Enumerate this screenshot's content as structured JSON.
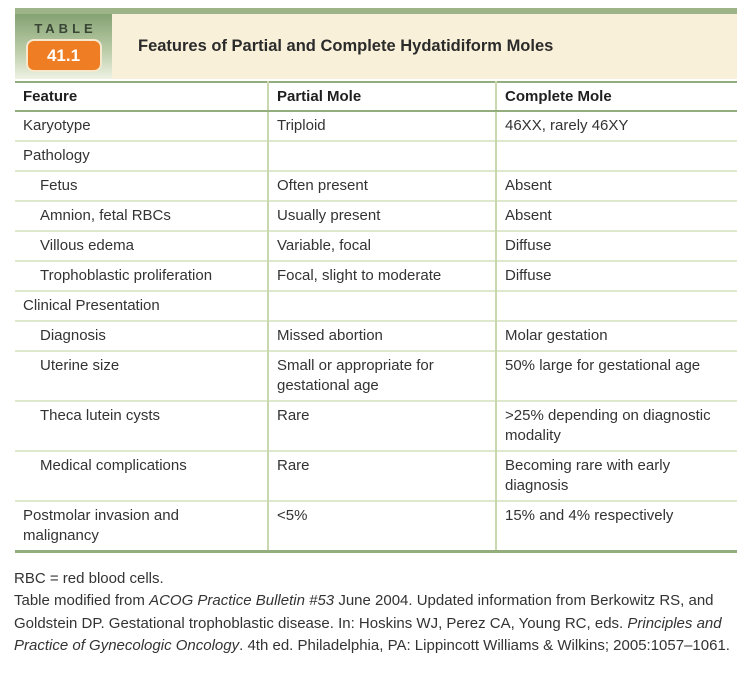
{
  "header": {
    "table_word": "TABLE",
    "table_number": "41.1",
    "title": "Features of Partial and Complete Hydatidiform Moles"
  },
  "table": {
    "columns": [
      "Feature",
      "Partial Mole",
      "Complete Mole"
    ],
    "rows": [
      {
        "feature": "Karyotype",
        "partial": "Triploid",
        "complete": "46XX, rarely 46XY",
        "type": "data",
        "indent": false
      },
      {
        "feature": "Pathology",
        "partial": "",
        "complete": "",
        "type": "section",
        "indent": false
      },
      {
        "feature": "Fetus",
        "partial": "Often present",
        "complete": "Absent",
        "type": "data",
        "indent": true
      },
      {
        "feature": "Amnion, fetal RBCs",
        "partial": "Usually present",
        "complete": "Absent",
        "type": "data",
        "indent": true
      },
      {
        "feature": "Villous edema",
        "partial": "Variable, focal",
        "complete": "Diffuse",
        "type": "data",
        "indent": true
      },
      {
        "feature": "Trophoblastic proliferation",
        "partial": "Focal, slight to moderate",
        "complete": "Diffuse",
        "type": "data",
        "indent": true
      },
      {
        "feature": "Clinical Presentation",
        "partial": "",
        "complete": "",
        "type": "section",
        "indent": false
      },
      {
        "feature": "Diagnosis",
        "partial": "Missed abortion",
        "complete": "Molar gestation",
        "type": "data",
        "indent": true
      },
      {
        "feature": "Uterine size",
        "partial": "Small or appropriate for gestational age",
        "complete": "50% large for gestational age",
        "type": "data",
        "indent": true
      },
      {
        "feature": "Theca lutein cysts",
        "partial": "Rare",
        "complete": ">25% depending on diagnostic modality",
        "type": "data",
        "indent": true
      },
      {
        "feature": "Medical complications",
        "partial": "Rare",
        "complete": "Becoming rare with early diagnosis",
        "type": "data",
        "indent": true
      },
      {
        "feature": "Postmolar invasion and malignancy",
        "partial": "<5%",
        "complete": "15% and 4% respectively",
        "type": "data",
        "indent": false
      }
    ]
  },
  "footnotes": {
    "abbreviation": "RBC = red blood cells.",
    "source_segments": [
      {
        "text": "Table modified from ",
        "italic": false
      },
      {
        "text": "ACOG Practice Bulletin #53",
        "italic": true
      },
      {
        "text": " June 2004. Updated information from Berkowitz RS, and Goldstein DP. Gestational trophoblastic disease. In: Hoskins WJ, Perez CA, Young RC, eds. ",
        "italic": false
      },
      {
        "text": "Principles and Practice of Gynecologic Oncology",
        "italic": true
      },
      {
        "text": ". 4th ed. Philadelphia, PA: Lippincott Williams & Wilkins; 2005:1057–1061.",
        "italic": false
      }
    ]
  },
  "colors": {
    "top_strip_green": "#9cb488",
    "label_gradient_top": "#85a273",
    "label_gradient_bottom": "#eef2e3",
    "number_box_orange": "#ef7d23",
    "title_panel_cream": "#f8f0d9",
    "major_rule_green": "#94ad7c",
    "row_rule_green": "#dde8cd",
    "column_rule_green": "#c9d8af",
    "text_dark": "#2f2f2f"
  }
}
